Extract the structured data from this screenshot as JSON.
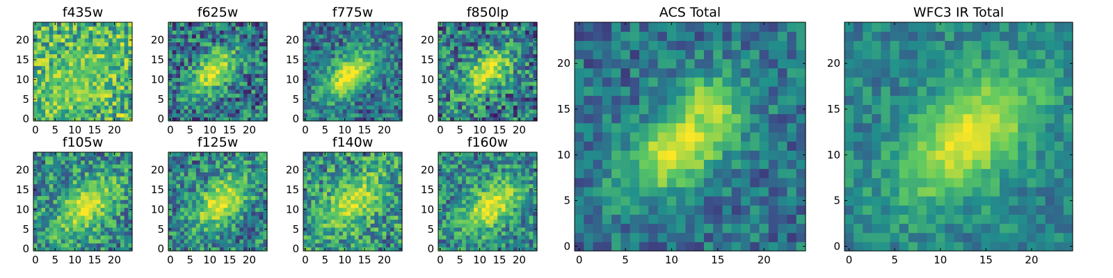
{
  "figure": {
    "background": "#ffffff",
    "colormap": "viridis",
    "colormap_stops": [
      "#440154",
      "#3b528b",
      "#21918c",
      "#5ec962",
      "#fde725"
    ]
  },
  "chart_data": [
    {
      "type": "heatmap",
      "title": "f435w",
      "grid_size": 25,
      "x_ticks": [
        0,
        5,
        10,
        15,
        20
      ],
      "y_ticks": [
        0,
        5,
        10,
        15,
        20
      ],
      "xlim": [
        0,
        24
      ],
      "ylim": [
        0,
        24
      ],
      "source": {
        "peak_xy": [
          11,
          10
        ],
        "peak_level": 0.15,
        "sigma": 6,
        "elongation_deg": 40
      },
      "background_level": 0.65,
      "noise_level": 0.33
    },
    {
      "type": "heatmap",
      "title": "f625w",
      "grid_size": 25,
      "x_ticks": [
        0,
        5,
        10,
        15,
        20
      ],
      "y_ticks": [
        0,
        5,
        10,
        15,
        20
      ],
      "xlim": [
        0,
        24
      ],
      "ylim": [
        0,
        24
      ],
      "source": {
        "peak_xy": [
          11,
          12
        ],
        "peak_level": 0.55,
        "sigma": 4,
        "elongation_deg": 40
      },
      "background_level": 0.38,
      "noise_level": 0.32
    },
    {
      "type": "heatmap",
      "title": "f775w",
      "grid_size": 25,
      "x_ticks": [
        0,
        5,
        10,
        15,
        20
      ],
      "y_ticks": [
        0,
        5,
        10,
        15,
        20
      ],
      "xlim": [
        0,
        24
      ],
      "ylim": [
        0,
        24
      ],
      "source": {
        "peak_xy": [
          11,
          11
        ],
        "peak_level": 0.6,
        "sigma": 4.2,
        "elongation_deg": 40
      },
      "background_level": 0.38,
      "noise_level": 0.25
    },
    {
      "type": "heatmap",
      "title": "f850lp",
      "grid_size": 25,
      "x_ticks": [
        0,
        5,
        10,
        15,
        20
      ],
      "y_ticks": [
        0,
        5,
        10,
        15,
        20
      ],
      "xlim": [
        0,
        24
      ],
      "ylim": [
        0,
        24
      ],
      "source": {
        "peak_xy": [
          12,
          12
        ],
        "peak_level": 0.55,
        "sigma": 4.2,
        "elongation_deg": 40
      },
      "background_level": 0.4,
      "noise_level": 0.35
    },
    {
      "type": "heatmap",
      "title": "f105w",
      "grid_size": 25,
      "x_ticks": [
        0,
        5,
        10,
        15,
        20
      ],
      "y_ticks": [
        0,
        5,
        10,
        15,
        20
      ],
      "xlim": [
        0,
        24
      ],
      "ylim": [
        0,
        24
      ],
      "source": {
        "peak_xy": [
          13,
          11
        ],
        "peak_level": 0.45,
        "sigma": 5,
        "elongation_deg": 40
      },
      "background_level": 0.48,
      "noise_level": 0.3
    },
    {
      "type": "heatmap",
      "title": "f125w",
      "grid_size": 25,
      "x_ticks": [
        0,
        5,
        10,
        15,
        20
      ],
      "y_ticks": [
        0,
        5,
        10,
        15,
        20
      ],
      "xlim": [
        0,
        24
      ],
      "ylim": [
        0,
        24
      ],
      "source": {
        "peak_xy": [
          13,
          12
        ],
        "peak_level": 0.5,
        "sigma": 4.5,
        "elongation_deg": 45
      },
      "background_level": 0.45,
      "noise_level": 0.3
    },
    {
      "type": "heatmap",
      "title": "f140w",
      "grid_size": 25,
      "x_ticks": [
        0,
        5,
        10,
        15,
        20
      ],
      "y_ticks": [
        0,
        5,
        10,
        15,
        20
      ],
      "xlim": [
        0,
        24
      ],
      "ylim": [
        0,
        24
      ],
      "source": {
        "peak_xy": [
          12,
          12
        ],
        "peak_level": 0.4,
        "sigma": 5,
        "elongation_deg": 40
      },
      "background_level": 0.5,
      "noise_level": 0.32
    },
    {
      "type": "heatmap",
      "title": "f160w",
      "grid_size": 25,
      "x_ticks": [
        0,
        5,
        10,
        15,
        20
      ],
      "y_ticks": [
        0,
        5,
        10,
        15,
        20
      ],
      "xlim": [
        0,
        24
      ],
      "ylim": [
        0,
        24
      ],
      "source": {
        "peak_xy": [
          13,
          11
        ],
        "peak_level": 0.5,
        "sigma": 4.5,
        "elongation_deg": 40
      },
      "background_level": 0.47,
      "noise_level": 0.28
    },
    {
      "type": "heatmap",
      "title": "ACS Total",
      "grid_size": 25,
      "x_ticks": [
        0,
        5,
        10,
        15,
        20
      ],
      "y_ticks": [
        0,
        5,
        10,
        15,
        20
      ],
      "xlim": [
        0,
        24
      ],
      "ylim": [
        0,
        24
      ],
      "source": {
        "peak_xy": [
          11,
          11
        ],
        "peak_level": 0.6,
        "sigma": 3.8,
        "elongation_deg": 38,
        "secondary_peak_xy": [
          14,
          15
        ]
      },
      "background_level": 0.38,
      "noise_level": 0.2
    },
    {
      "type": "heatmap",
      "title": "WFC3 IR Total",
      "grid_size": 25,
      "x_ticks": [
        0,
        5,
        10,
        15,
        20
      ],
      "y_ticks": [
        0,
        5,
        10,
        15,
        20
      ],
      "xlim": [
        0,
        24
      ],
      "ylim": [
        0,
        24
      ],
      "source": {
        "peak_xy": [
          13,
          12
        ],
        "peak_level": 0.52,
        "sigma": 4.8,
        "elongation_deg": 42
      },
      "background_level": 0.45,
      "noise_level": 0.16
    }
  ]
}
